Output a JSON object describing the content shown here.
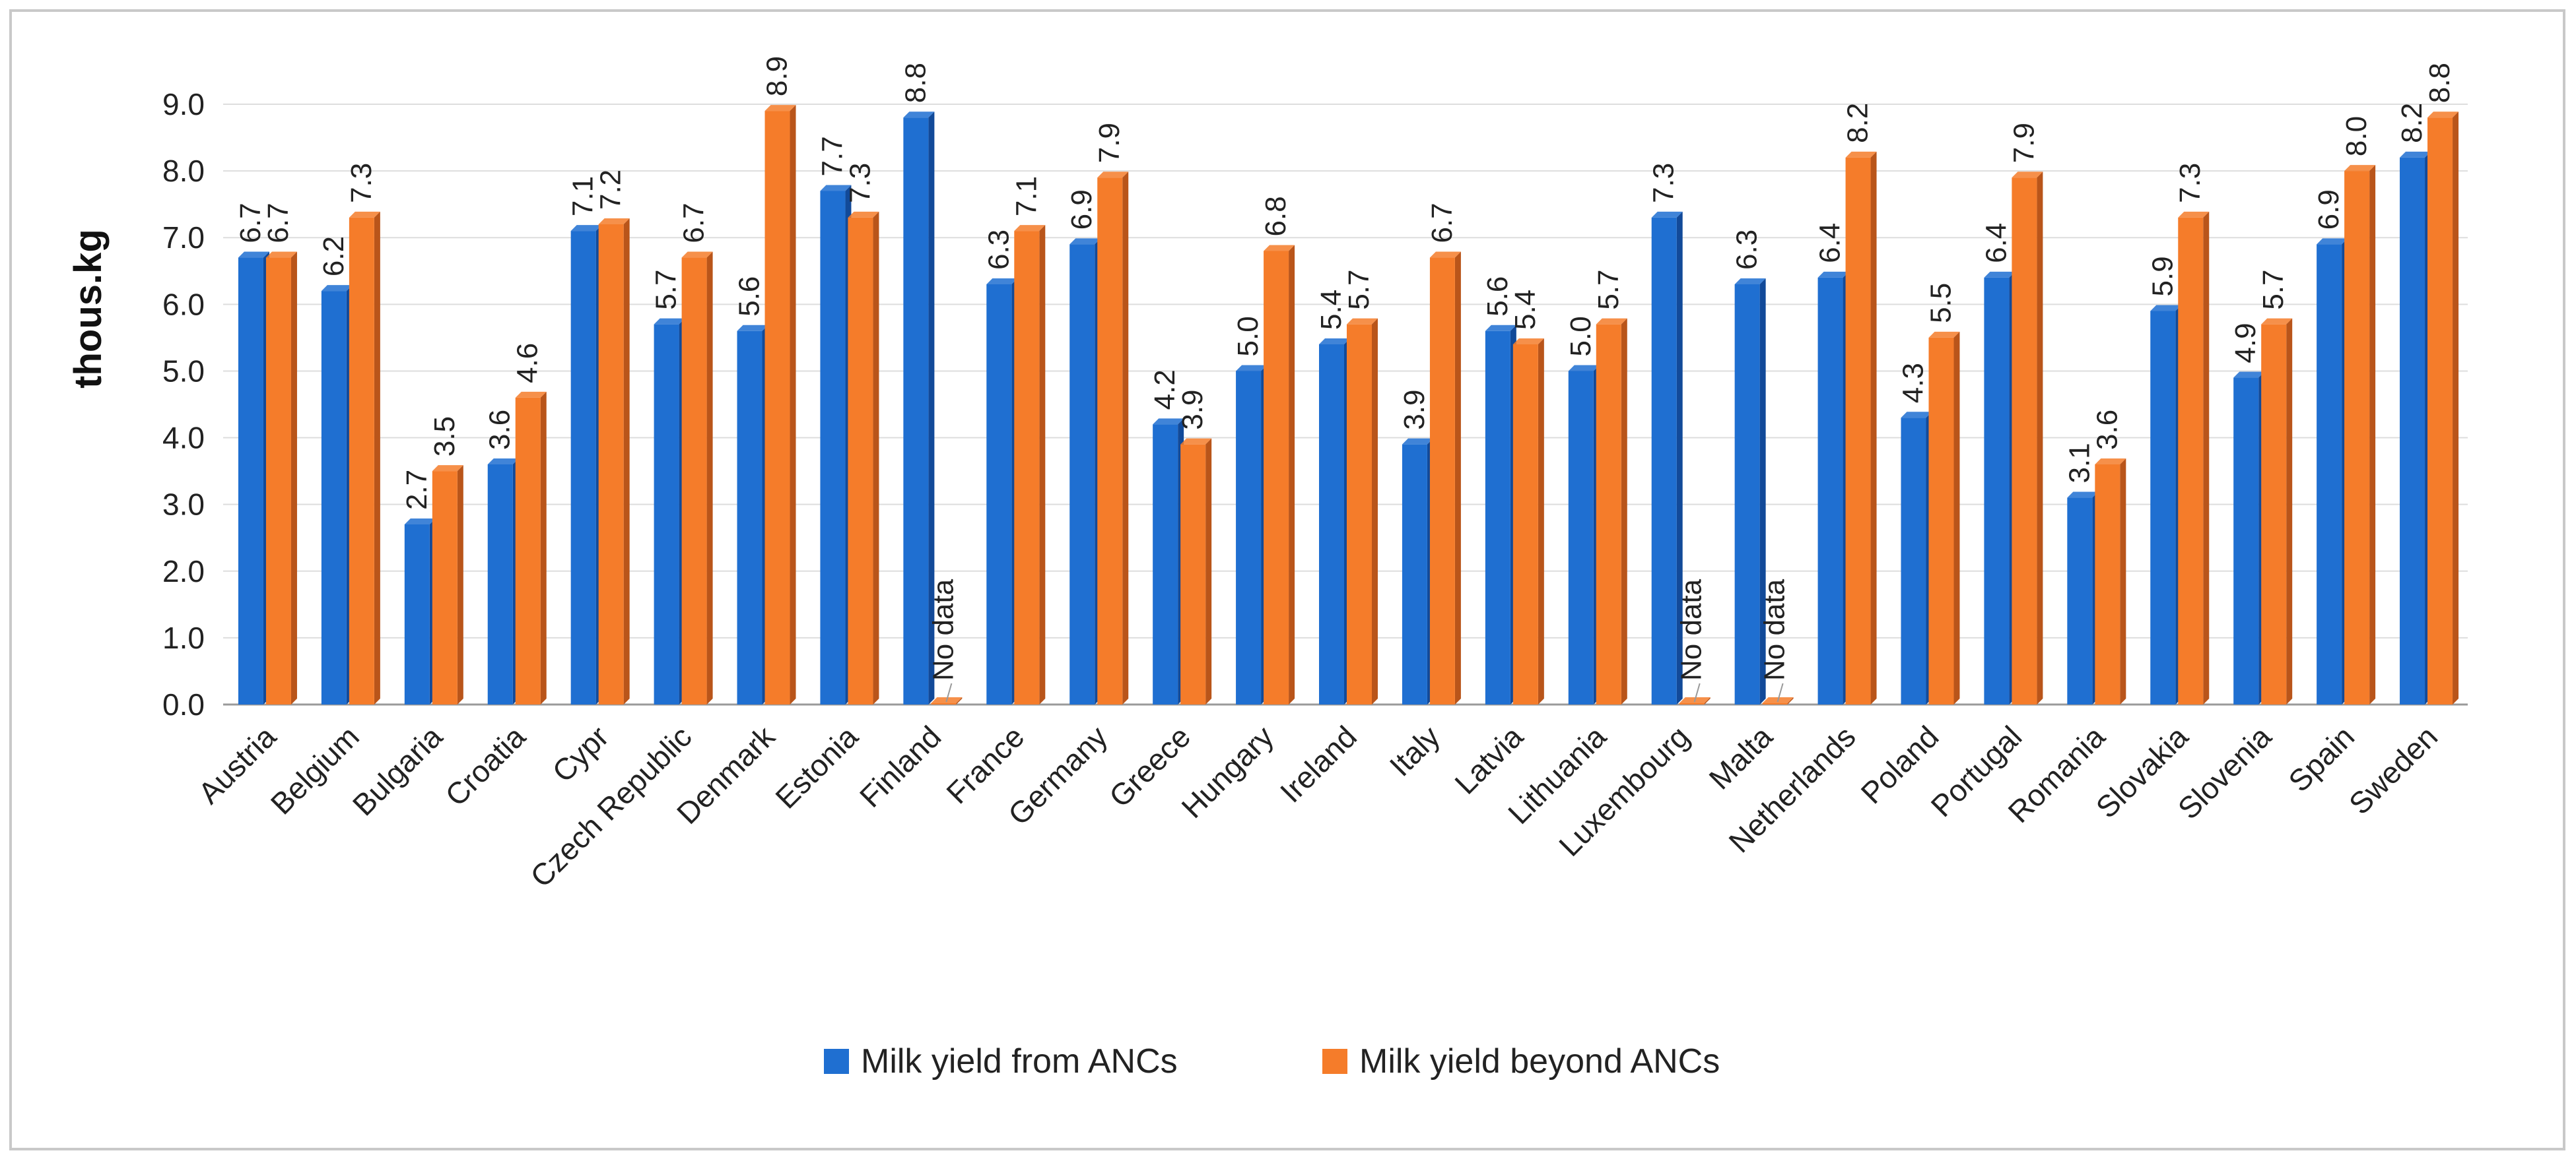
{
  "chart_data": {
    "type": "bar",
    "ylabel": "thous.kg",
    "ylim": [
      0,
      9
    ],
    "yticks": [
      "0.0",
      "1.0",
      "2.0",
      "3.0",
      "4.0",
      "5.0",
      "6.0",
      "7.0",
      "8.0",
      "9.0"
    ],
    "grid": true,
    "legend_position": "bottom",
    "categories": [
      "Austria",
      "Belgium",
      "Bulgaria",
      "Croatia",
      "Cypr",
      "Czech Republic",
      "Denmark",
      "Estonia",
      "Finland",
      "France",
      "Germany",
      "Greece",
      "Hungary",
      "Ireland",
      "Italy",
      "Latvia",
      "Lithuania",
      "Luxembourg",
      "Malta",
      "Netherlands",
      "Poland",
      "Portugal",
      "Romania",
      "Slovakia",
      "Slovenia",
      "Spain",
      "Sweden"
    ],
    "series": [
      {
        "name": "Milk yield from ANCs",
        "color": "#1f6fd1",
        "side": "#124a99",
        "values": [
          6.7,
          6.2,
          2.7,
          3.6,
          7.1,
          5.7,
          5.6,
          7.7,
          8.8,
          6.3,
          6.9,
          4.2,
          5.0,
          5.4,
          3.9,
          5.6,
          5.0,
          7.3,
          6.3,
          6.4,
          4.3,
          6.4,
          3.1,
          5.9,
          4.9,
          6.9,
          8.2
        ],
        "labels": [
          "6.7",
          "6.2",
          "2.7",
          "3.6",
          "7.1",
          "5.7",
          "5.6",
          "7.7",
          "8.8",
          "6.3",
          "6.9",
          "4.2",
          "5.0",
          "5.4",
          "3.9",
          "5.6",
          "5.0",
          "7.3",
          "6.3",
          "6.4",
          "4.3",
          "6.4",
          "3.1",
          "5.9",
          "4.9",
          "6.9",
          "8.2"
        ]
      },
      {
        "name": "Milk yield beyond ANCs",
        "color": "#f57c2a",
        "side": "#b9551a",
        "values": [
          6.7,
          7.3,
          3.5,
          4.6,
          7.2,
          6.7,
          8.9,
          7.3,
          0,
          7.1,
          7.9,
          3.9,
          6.8,
          5.7,
          6.7,
          5.4,
          5.7,
          0,
          0,
          8.2,
          5.5,
          7.9,
          3.6,
          7.3,
          5.7,
          8.0,
          8.8
        ],
        "labels": [
          "6.7",
          "7.3",
          "3.5",
          "4.6",
          "7.2",
          "6.7",
          "8.9",
          "7.3",
          "No data",
          "7.1",
          "7.9",
          "3.9",
          "6.8",
          "5.7",
          "6.7",
          "5.4",
          "5.7",
          "No data",
          "No data",
          "8.2",
          "5.5",
          "7.9",
          "3.6",
          "7.3",
          "5.7",
          "8.0",
          "8.8"
        ]
      }
    ]
  }
}
